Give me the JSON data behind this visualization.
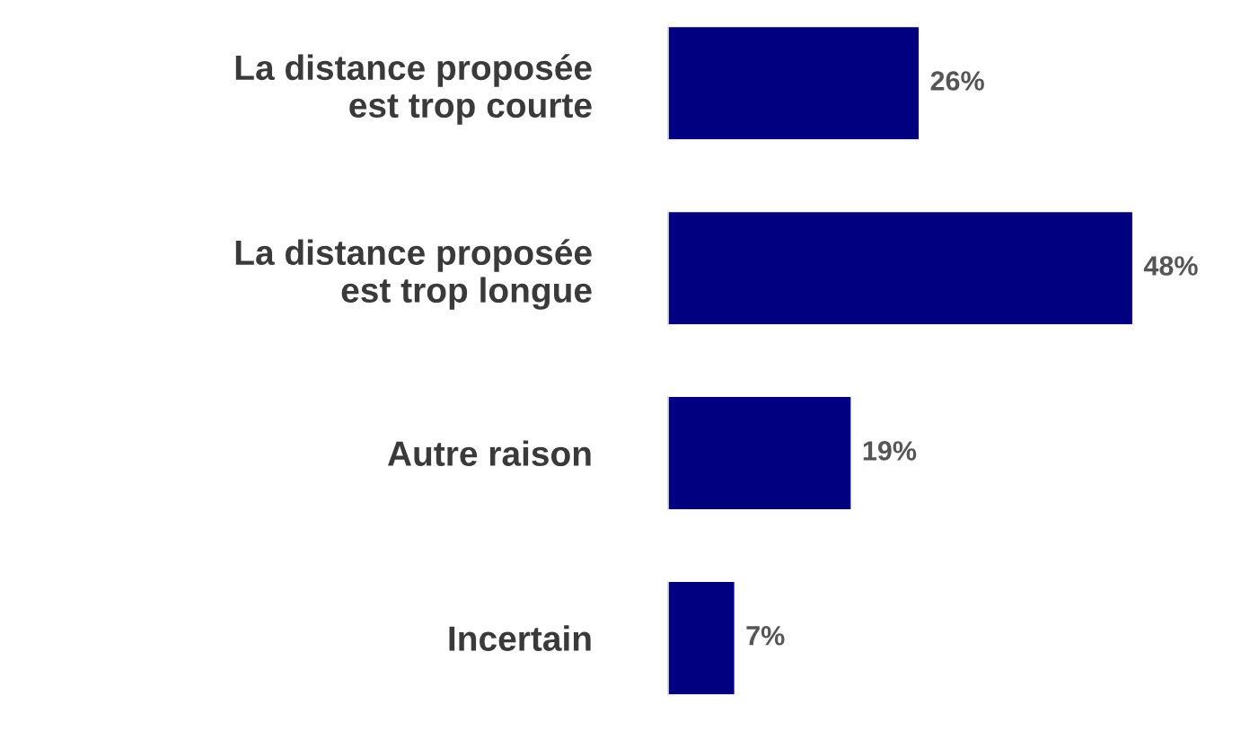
{
  "chart_data": {
    "type": "bar",
    "orientation": "horizontal",
    "categories": [
      "La distance proposée\nest trop courte",
      "La distance proposée\nest trop longue",
      "Autre raison",
      "Incertain"
    ],
    "values": [
      26,
      48,
      19,
      7
    ],
    "value_labels": [
      "26%",
      "48%",
      "19%",
      "7%"
    ],
    "color": "#000080",
    "grid": false,
    "legend": false,
    "tick_labels": "y"
  }
}
